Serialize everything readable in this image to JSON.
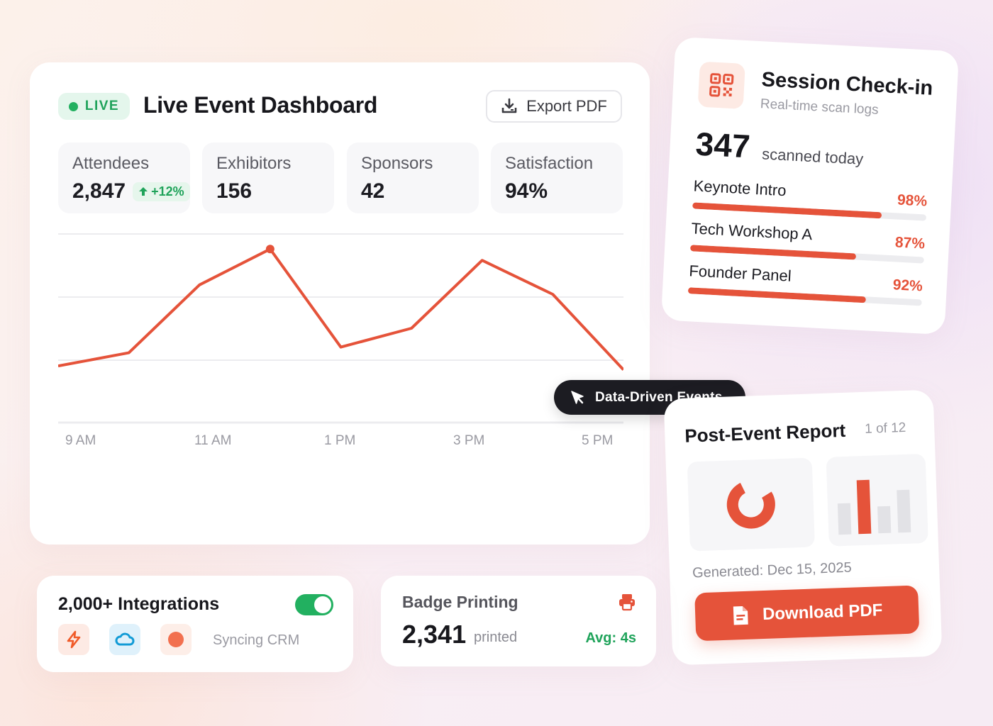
{
  "dashboard": {
    "live_label": "LIVE",
    "title": "Live Event Dashboard",
    "export_label": "Export PDF",
    "stats": [
      {
        "label": "Attendees",
        "value": "2,847",
        "delta": "+12%"
      },
      {
        "label": "Exhibitors",
        "value": "156"
      },
      {
        "label": "Sponsors",
        "value": "42"
      },
      {
        "label": "Satisfaction",
        "value": "94%"
      }
    ]
  },
  "chart_data": {
    "type": "line",
    "title": "",
    "xlabel": "",
    "ylabel": "",
    "x_tick_labels": [
      "9 AM",
      "11 AM",
      "1 PM",
      "3 PM",
      "5 PM"
    ],
    "x": [
      9,
      10,
      11,
      12,
      13,
      14,
      15,
      16,
      17
    ],
    "values": [
      30,
      37,
      73,
      92,
      40,
      50,
      86,
      68,
      28
    ],
    "ylim": [
      0,
      100
    ],
    "highlight_index": 3,
    "grid": true,
    "color": "#e5533a"
  },
  "tooltip": {
    "label": "Data-Driven Events"
  },
  "checkin": {
    "title": "Session Check-in",
    "subtitle": "Real-time scan logs",
    "count": "347",
    "count_label": "scanned today",
    "sessions": [
      {
        "name": "Keynote Intro",
        "pct_label": "98%",
        "pct": 0.81
      },
      {
        "name": "Tech Workshop A",
        "pct_label": "87%",
        "pct": 0.71
      },
      {
        "name": "Founder Panel",
        "pct_label": "92%",
        "pct": 0.76
      }
    ]
  },
  "report": {
    "title": "Post-Event Report",
    "page": "1 of 12",
    "generated": "Generated: Dec 15, 2025",
    "download_label": "Download PDF"
  },
  "integrations": {
    "title": "2,000+ Integrations",
    "toggle_on": true,
    "status": "Syncing CRM",
    "icons": [
      "lightning-icon",
      "cloud-icon",
      "circle-icon"
    ]
  },
  "badge": {
    "title": "Badge Printing",
    "count": "2,341",
    "count_label": "printed",
    "avg": "Avg: 4s"
  },
  "colors": {
    "accent": "#e5533a",
    "success": "#22b060",
    "dark": "#1c1c22"
  }
}
